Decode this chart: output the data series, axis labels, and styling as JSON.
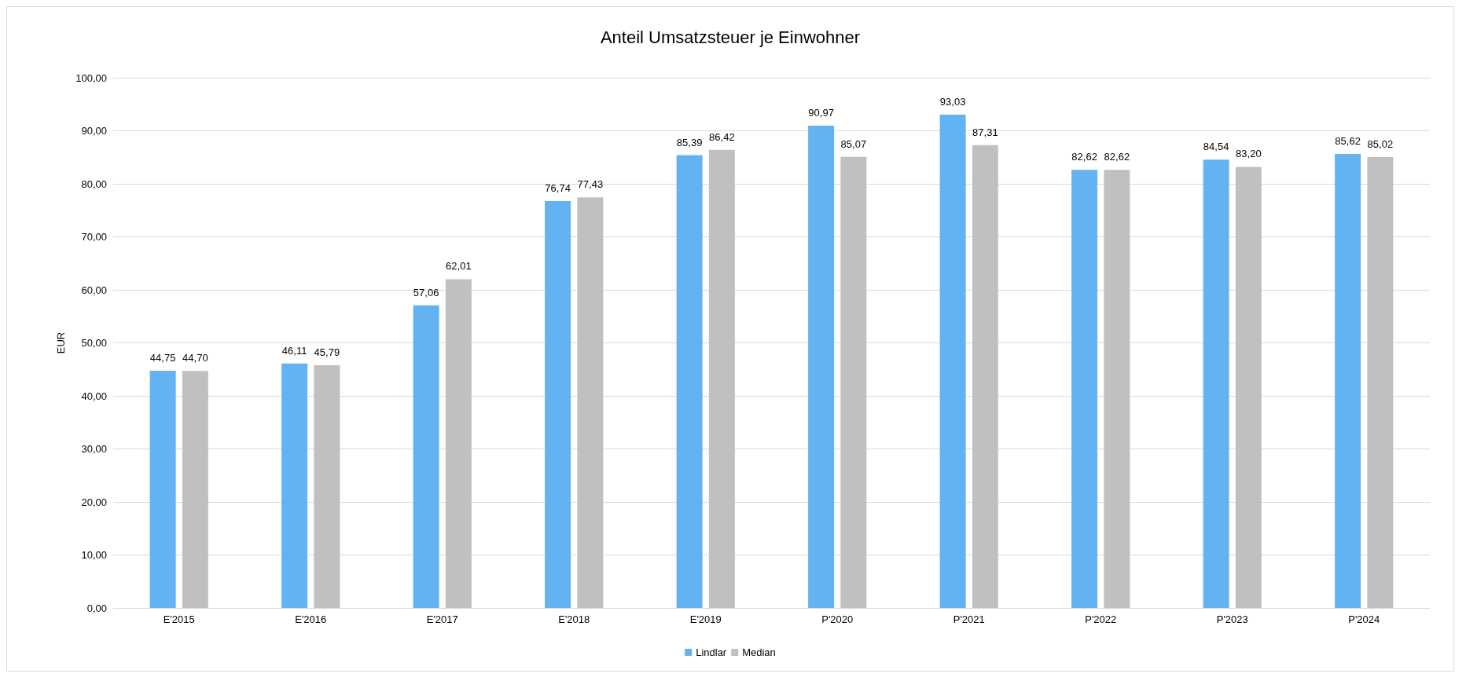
{
  "chart_data": {
    "type": "bar",
    "title": "Anteil Umsatzsteuer je Einwohner",
    "ylabel": "EUR",
    "categories": [
      "E'2015",
      "E'2016",
      "E'2017",
      "E'2018",
      "E'2019",
      "P'2020",
      "P'2021",
      "P'2022",
      "P'2023",
      "P'2024"
    ],
    "series": [
      {
        "name": "Lindlar",
        "color": "#63b3f3",
        "values": [
          44.75,
          46.11,
          57.06,
          76.74,
          85.39,
          90.97,
          93.03,
          82.62,
          84.54,
          85.62
        ],
        "value_labels": [
          "44,75",
          "46,11",
          "57,06",
          "76,74",
          "85,39",
          "90,97",
          "93,03",
          "82,62",
          "84,54",
          "85,62"
        ]
      },
      {
        "name": "Median",
        "color": "#c0c0c0",
        "values": [
          44.7,
          45.79,
          62.01,
          77.43,
          86.42,
          85.07,
          87.31,
          82.62,
          83.2,
          85.02
        ],
        "value_labels": [
          "44,70",
          "45,79",
          "62,01",
          "77,43",
          "86,42",
          "85,07",
          "87,31",
          "82,62",
          "83,20",
          "85,02"
        ]
      }
    ],
    "ylim": [
      0,
      100
    ],
    "yticks": [
      {
        "value": 0,
        "label": "0,00"
      },
      {
        "value": 10,
        "label": "10,00"
      },
      {
        "value": 20,
        "label": "20,00"
      },
      {
        "value": 30,
        "label": "30,00"
      },
      {
        "value": 40,
        "label": "40,00"
      },
      {
        "value": 50,
        "label": "50,00"
      },
      {
        "value": 60,
        "label": "60,00"
      },
      {
        "value": 70,
        "label": "70,00"
      },
      {
        "value": 80,
        "label": "80,00"
      },
      {
        "value": 90,
        "label": "90,00"
      },
      {
        "value": 100,
        "label": "100,00"
      }
    ],
    "grid": "y",
    "legend": "bottom"
  }
}
